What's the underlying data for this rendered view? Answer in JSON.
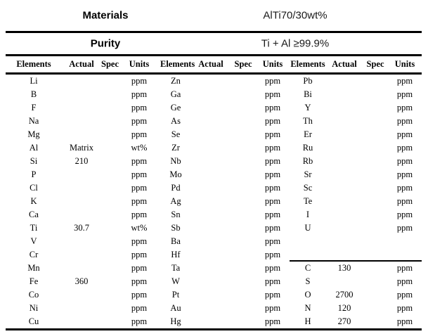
{
  "info": {
    "materials": {
      "label": "Materials",
      "value": "AlTi70/30wt%"
    },
    "purity": {
      "label": "Purity",
      "value": "Ti + Al ≥99.9%"
    }
  },
  "column_headers": [
    "Elements",
    "Actual",
    "Spec",
    "Units"
  ],
  "groups": [
    {
      "rows": [
        {
          "el": "Li",
          "actual": "",
          "spec": "",
          "units": "ppm"
        },
        {
          "el": "B",
          "actual": "",
          "spec": "",
          "units": "ppm"
        },
        {
          "el": "F",
          "actual": "",
          "spec": "",
          "units": "ppm"
        },
        {
          "el": "Na",
          "actual": "",
          "spec": "",
          "units": "ppm"
        },
        {
          "el": "Mg",
          "actual": "",
          "spec": "",
          "units": "ppm"
        },
        {
          "el": "Al",
          "actual": "Matrix",
          "spec": "",
          "units": "wt%"
        },
        {
          "el": "Si",
          "actual": "210",
          "spec": "",
          "units": "ppm"
        },
        {
          "el": "P",
          "actual": "",
          "spec": "",
          "units": "ppm"
        },
        {
          "el": "Cl",
          "actual": "",
          "spec": "",
          "units": "ppm"
        },
        {
          "el": "K",
          "actual": "",
          "spec": "",
          "units": "ppm"
        },
        {
          "el": "Ca",
          "actual": "",
          "spec": "",
          "units": "ppm"
        },
        {
          "el": "Ti",
          "actual": "30.7",
          "spec": "",
          "units": "wt%"
        },
        {
          "el": "V",
          "actual": "",
          "spec": "",
          "units": "ppm"
        },
        {
          "el": "Cr",
          "actual": "",
          "spec": "",
          "units": "ppm"
        },
        {
          "el": "Mn",
          "actual": "",
          "spec": "",
          "units": "ppm"
        },
        {
          "el": "Fe",
          "actual": "360",
          "spec": "",
          "units": "ppm"
        },
        {
          "el": "Co",
          "actual": "",
          "spec": "",
          "units": "ppm"
        },
        {
          "el": "Ni",
          "actual": "",
          "spec": "",
          "units": "ppm"
        },
        {
          "el": "Cu",
          "actual": "",
          "spec": "",
          "units": "ppm"
        }
      ]
    },
    {
      "rows": [
        {
          "el": "Zn",
          "actual": "",
          "spec": "",
          "units": "ppm"
        },
        {
          "el": "Ga",
          "actual": "",
          "spec": "",
          "units": "ppm"
        },
        {
          "el": "Ge",
          "actual": "",
          "spec": "",
          "units": "ppm"
        },
        {
          "el": "As",
          "actual": "",
          "spec": "",
          "units": "ppm"
        },
        {
          "el": "Se",
          "actual": "",
          "spec": "",
          "units": "ppm"
        },
        {
          "el": "Zr",
          "actual": "",
          "spec": "",
          "units": "ppm"
        },
        {
          "el": "Nb",
          "actual": "",
          "spec": "",
          "units": "ppm"
        },
        {
          "el": "Mo",
          "actual": "",
          "spec": "",
          "units": "ppm"
        },
        {
          "el": "Pd",
          "actual": "",
          "spec": "",
          "units": "ppm"
        },
        {
          "el": "Ag",
          "actual": "",
          "spec": "",
          "units": "ppm"
        },
        {
          "el": "Sn",
          "actual": "",
          "spec": "",
          "units": "ppm"
        },
        {
          "el": "Sb",
          "actual": "",
          "spec": "",
          "units": "ppm"
        },
        {
          "el": "Ba",
          "actual": "",
          "spec": "",
          "units": "ppm"
        },
        {
          "el": "Hf",
          "actual": "",
          "spec": "",
          "units": "ppm"
        },
        {
          "el": "Ta",
          "actual": "",
          "spec": "",
          "units": "ppm"
        },
        {
          "el": "W",
          "actual": "",
          "spec": "",
          "units": "ppm"
        },
        {
          "el": "Pt",
          "actual": "",
          "spec": "",
          "units": "ppm"
        },
        {
          "el": "Au",
          "actual": "",
          "spec": "",
          "units": "ppm"
        },
        {
          "el": "Hg",
          "actual": "",
          "spec": "",
          "units": "ppm"
        }
      ]
    },
    {
      "divider_before_index": 14,
      "rows": [
        {
          "el": "Pb",
          "actual": "",
          "spec": "",
          "units": "ppm"
        },
        {
          "el": "Bi",
          "actual": "",
          "spec": "",
          "units": "ppm"
        },
        {
          "el": "Y",
          "actual": "",
          "spec": "",
          "units": "ppm"
        },
        {
          "el": "Th",
          "actual": "",
          "spec": "",
          "units": "ppm"
        },
        {
          "el": "Er",
          "actual": "",
          "spec": "",
          "units": "ppm"
        },
        {
          "el": "Ru",
          "actual": "",
          "spec": "",
          "units": "ppm"
        },
        {
          "el": "Rb",
          "actual": "",
          "spec": "",
          "units": "ppm"
        },
        {
          "el": "Sr",
          "actual": "",
          "spec": "",
          "units": "ppm"
        },
        {
          "el": "Sc",
          "actual": "",
          "spec": "",
          "units": "ppm"
        },
        {
          "el": "Te",
          "actual": "",
          "spec": "",
          "units": "ppm"
        },
        {
          "el": "I",
          "actual": "",
          "spec": "",
          "units": "ppm"
        },
        {
          "el": "U",
          "actual": "",
          "spec": "",
          "units": "ppm"
        },
        {
          "el": "",
          "actual": "",
          "spec": "",
          "units": ""
        },
        {
          "el": "",
          "actual": "",
          "spec": "",
          "units": ""
        },
        {
          "el": "C",
          "actual": "130",
          "spec": "",
          "units": "ppm"
        },
        {
          "el": "S",
          "actual": "",
          "spec": "",
          "units": "ppm"
        },
        {
          "el": "O",
          "actual": "2700",
          "spec": "",
          "units": "ppm"
        },
        {
          "el": "N",
          "actual": "120",
          "spec": "",
          "units": "ppm"
        },
        {
          "el": "H",
          "actual": "270",
          "spec": "",
          "units": "ppm"
        }
      ]
    }
  ]
}
